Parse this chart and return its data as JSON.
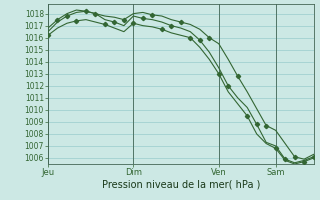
{
  "background_color": "#cce8e4",
  "grid_color": "#99cccc",
  "line_color": "#336633",
  "xlabel": "Pression niveau de la mer( hPa )",
  "ylim": [
    1005.5,
    1018.8
  ],
  "xtick_labels": [
    "Jeu",
    "Dim",
    "Ven",
    "Sam"
  ],
  "xtick_positions": [
    0,
    9,
    18,
    24
  ],
  "vline_positions": [
    0,
    9,
    18,
    24
  ],
  "total_points": 29,
  "line1_x": [
    0,
    1,
    2,
    3,
    4,
    5,
    6,
    7,
    8,
    9,
    10,
    11,
    12,
    13,
    14,
    15,
    16,
    17,
    18,
    19,
    20,
    21,
    22,
    23,
    24,
    25,
    26,
    27,
    28
  ],
  "line1_y": [
    1016.5,
    1017.3,
    1017.8,
    1018.1,
    1018.2,
    1018.0,
    1017.8,
    1017.7,
    1017.5,
    1018.0,
    1018.1,
    1017.9,
    1017.8,
    1017.5,
    1017.3,
    1017.1,
    1016.7,
    1016.0,
    1015.5,
    1014.2,
    1012.8,
    1011.5,
    1010.1,
    1008.7,
    1008.3,
    1007.2,
    1006.1,
    1005.9,
    1006.3
  ],
  "line2_x": [
    0,
    1,
    2,
    3,
    4,
    5,
    6,
    7,
    8,
    9,
    10,
    11,
    12,
    13,
    14,
    15,
    16,
    17,
    18,
    19,
    20,
    21,
    22,
    23,
    24,
    25,
    26,
    27,
    28
  ],
  "line2_y": [
    1016.8,
    1017.5,
    1018.0,
    1018.3,
    1018.2,
    1018.0,
    1017.5,
    1017.3,
    1017.0,
    1017.8,
    1017.6,
    1017.5,
    1017.3,
    1017.0,
    1016.8,
    1016.5,
    1015.8,
    1014.8,
    1013.5,
    1012.0,
    1011.0,
    1010.2,
    1008.8,
    1007.3,
    1007.0,
    1005.9,
    1005.6,
    1005.8,
    1006.1
  ],
  "line3_x": [
    0,
    1,
    2,
    3,
    4,
    5,
    6,
    7,
    8,
    9,
    10,
    11,
    12,
    13,
    14,
    15,
    16,
    17,
    18,
    19,
    20,
    21,
    22,
    23,
    24,
    25,
    26,
    27,
    28
  ],
  "line3_y": [
    1016.2,
    1016.8,
    1017.2,
    1017.4,
    1017.5,
    1017.3,
    1017.1,
    1016.8,
    1016.5,
    1017.2,
    1017.0,
    1016.9,
    1016.7,
    1016.4,
    1016.2,
    1016.0,
    1015.2,
    1014.2,
    1013.0,
    1011.5,
    1010.5,
    1009.5,
    1008.0,
    1007.2,
    1006.8,
    1005.8,
    1005.5,
    1005.7,
    1006.0
  ],
  "marker1_x": [
    2,
    5,
    8,
    11,
    14,
    17,
    20,
    23,
    26
  ],
  "marker2_x": [
    1,
    4,
    7,
    10,
    13,
    16,
    19,
    22,
    25,
    28
  ],
  "marker3_x": [
    0,
    3,
    6,
    9,
    12,
    15,
    18,
    21,
    24,
    27
  ],
  "ylabel_fontsize": 5.0,
  "xlabel_fontsize": 7.0,
  "tick_fontsize": 5.5
}
